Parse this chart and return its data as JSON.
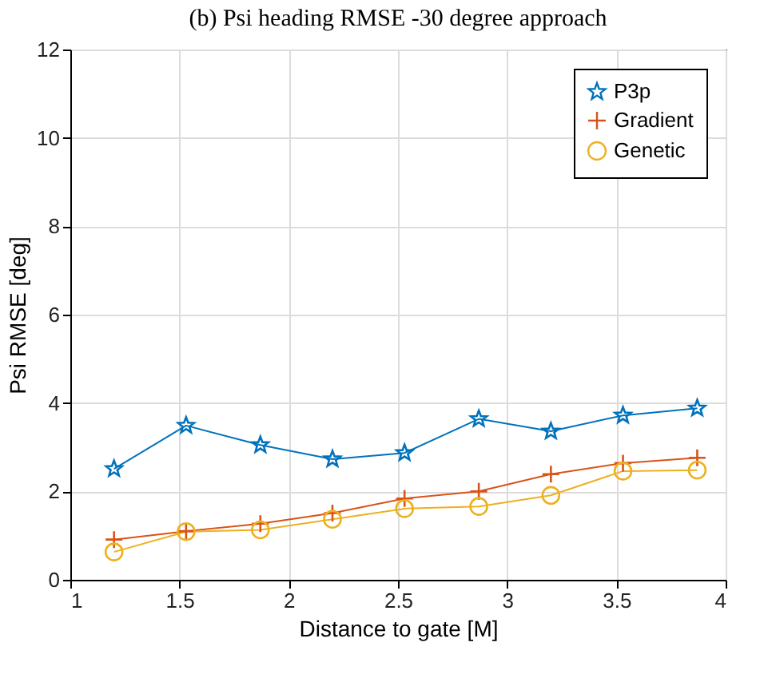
{
  "chart_data": {
    "type": "line",
    "title": "(b) Psi heading RMSE -30 degree approach",
    "xlabel": "Distance to gate [M]",
    "ylabel": "Psi RMSE [deg]",
    "x": [
      1.2,
      1.53,
      1.87,
      2.2,
      2.53,
      2.87,
      3.2,
      3.53,
      3.87
    ],
    "series": [
      {
        "name": "P3p",
        "color": "#0072bd",
        "marker": "star",
        "values": [
          2.51,
          3.49,
          3.05,
          2.73,
          2.87,
          3.64,
          3.36,
          3.72,
          3.88
        ]
      },
      {
        "name": "Gradient",
        "color": "#d95319",
        "marker": "cross",
        "values": [
          0.91,
          1.1,
          1.27,
          1.51,
          1.84,
          2.0,
          2.39,
          2.64,
          2.76
        ]
      },
      {
        "name": "Genetic",
        "color": "#edb120",
        "marker": "circle",
        "values": [
          0.63,
          1.09,
          1.13,
          1.37,
          1.61,
          1.66,
          1.91,
          2.46,
          2.48
        ]
      }
    ],
    "xlim": [
      1,
      4
    ],
    "xticks": [
      1,
      1.5,
      2,
      2.5,
      3,
      3.5,
      4
    ],
    "ylim": [
      0,
      12
    ],
    "yticks": [
      0,
      2,
      4,
      6,
      8,
      10,
      12
    ],
    "grid": true,
    "legend": "top right",
    "line_style": "solid"
  }
}
